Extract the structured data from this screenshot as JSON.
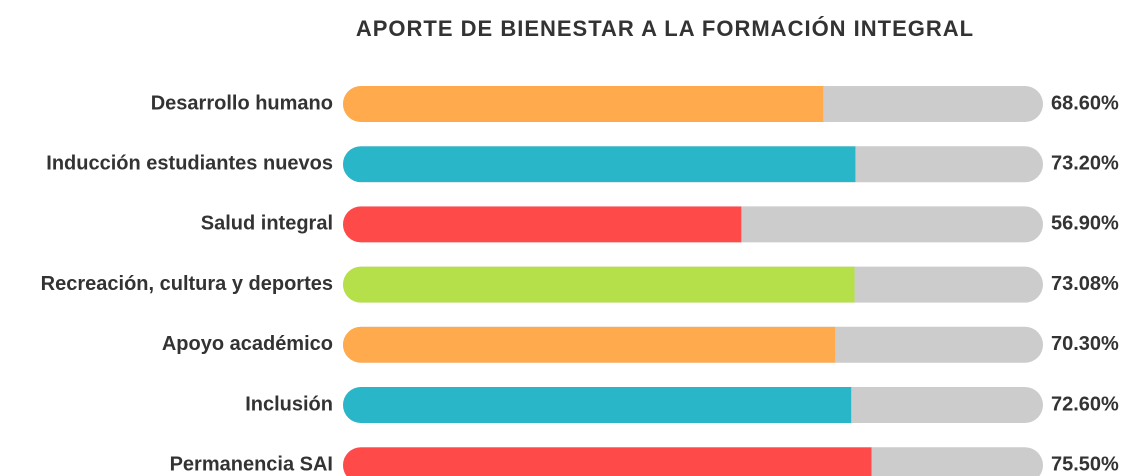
{
  "chart_data": {
    "type": "bar",
    "title": "APORTE DE BIENESTAR A LA FORMACIÓN INTEGRAL",
    "categories": [
      "Desarrollo humano",
      "Inducción estudiantes nuevos",
      "Salud integral",
      "Recreación, cultura y deportes",
      "Apoyo académico",
      "Inclusión",
      "Permanencia SAI"
    ],
    "values": [
      68.6,
      73.2,
      56.9,
      73.08,
      70.3,
      72.6,
      75.5
    ],
    "value_labels": [
      "68.60%",
      "73.20%",
      "56.90%",
      "73.08%",
      "70.30%",
      "72.60%",
      "75.50%"
    ],
    "colors": [
      "#ffaa4c",
      "#29b6c9",
      "#ff4a4a",
      "#b5e04a",
      "#ffaa4c",
      "#29b6c9",
      "#ff4a4a"
    ],
    "xlim": [
      0,
      100
    ]
  }
}
